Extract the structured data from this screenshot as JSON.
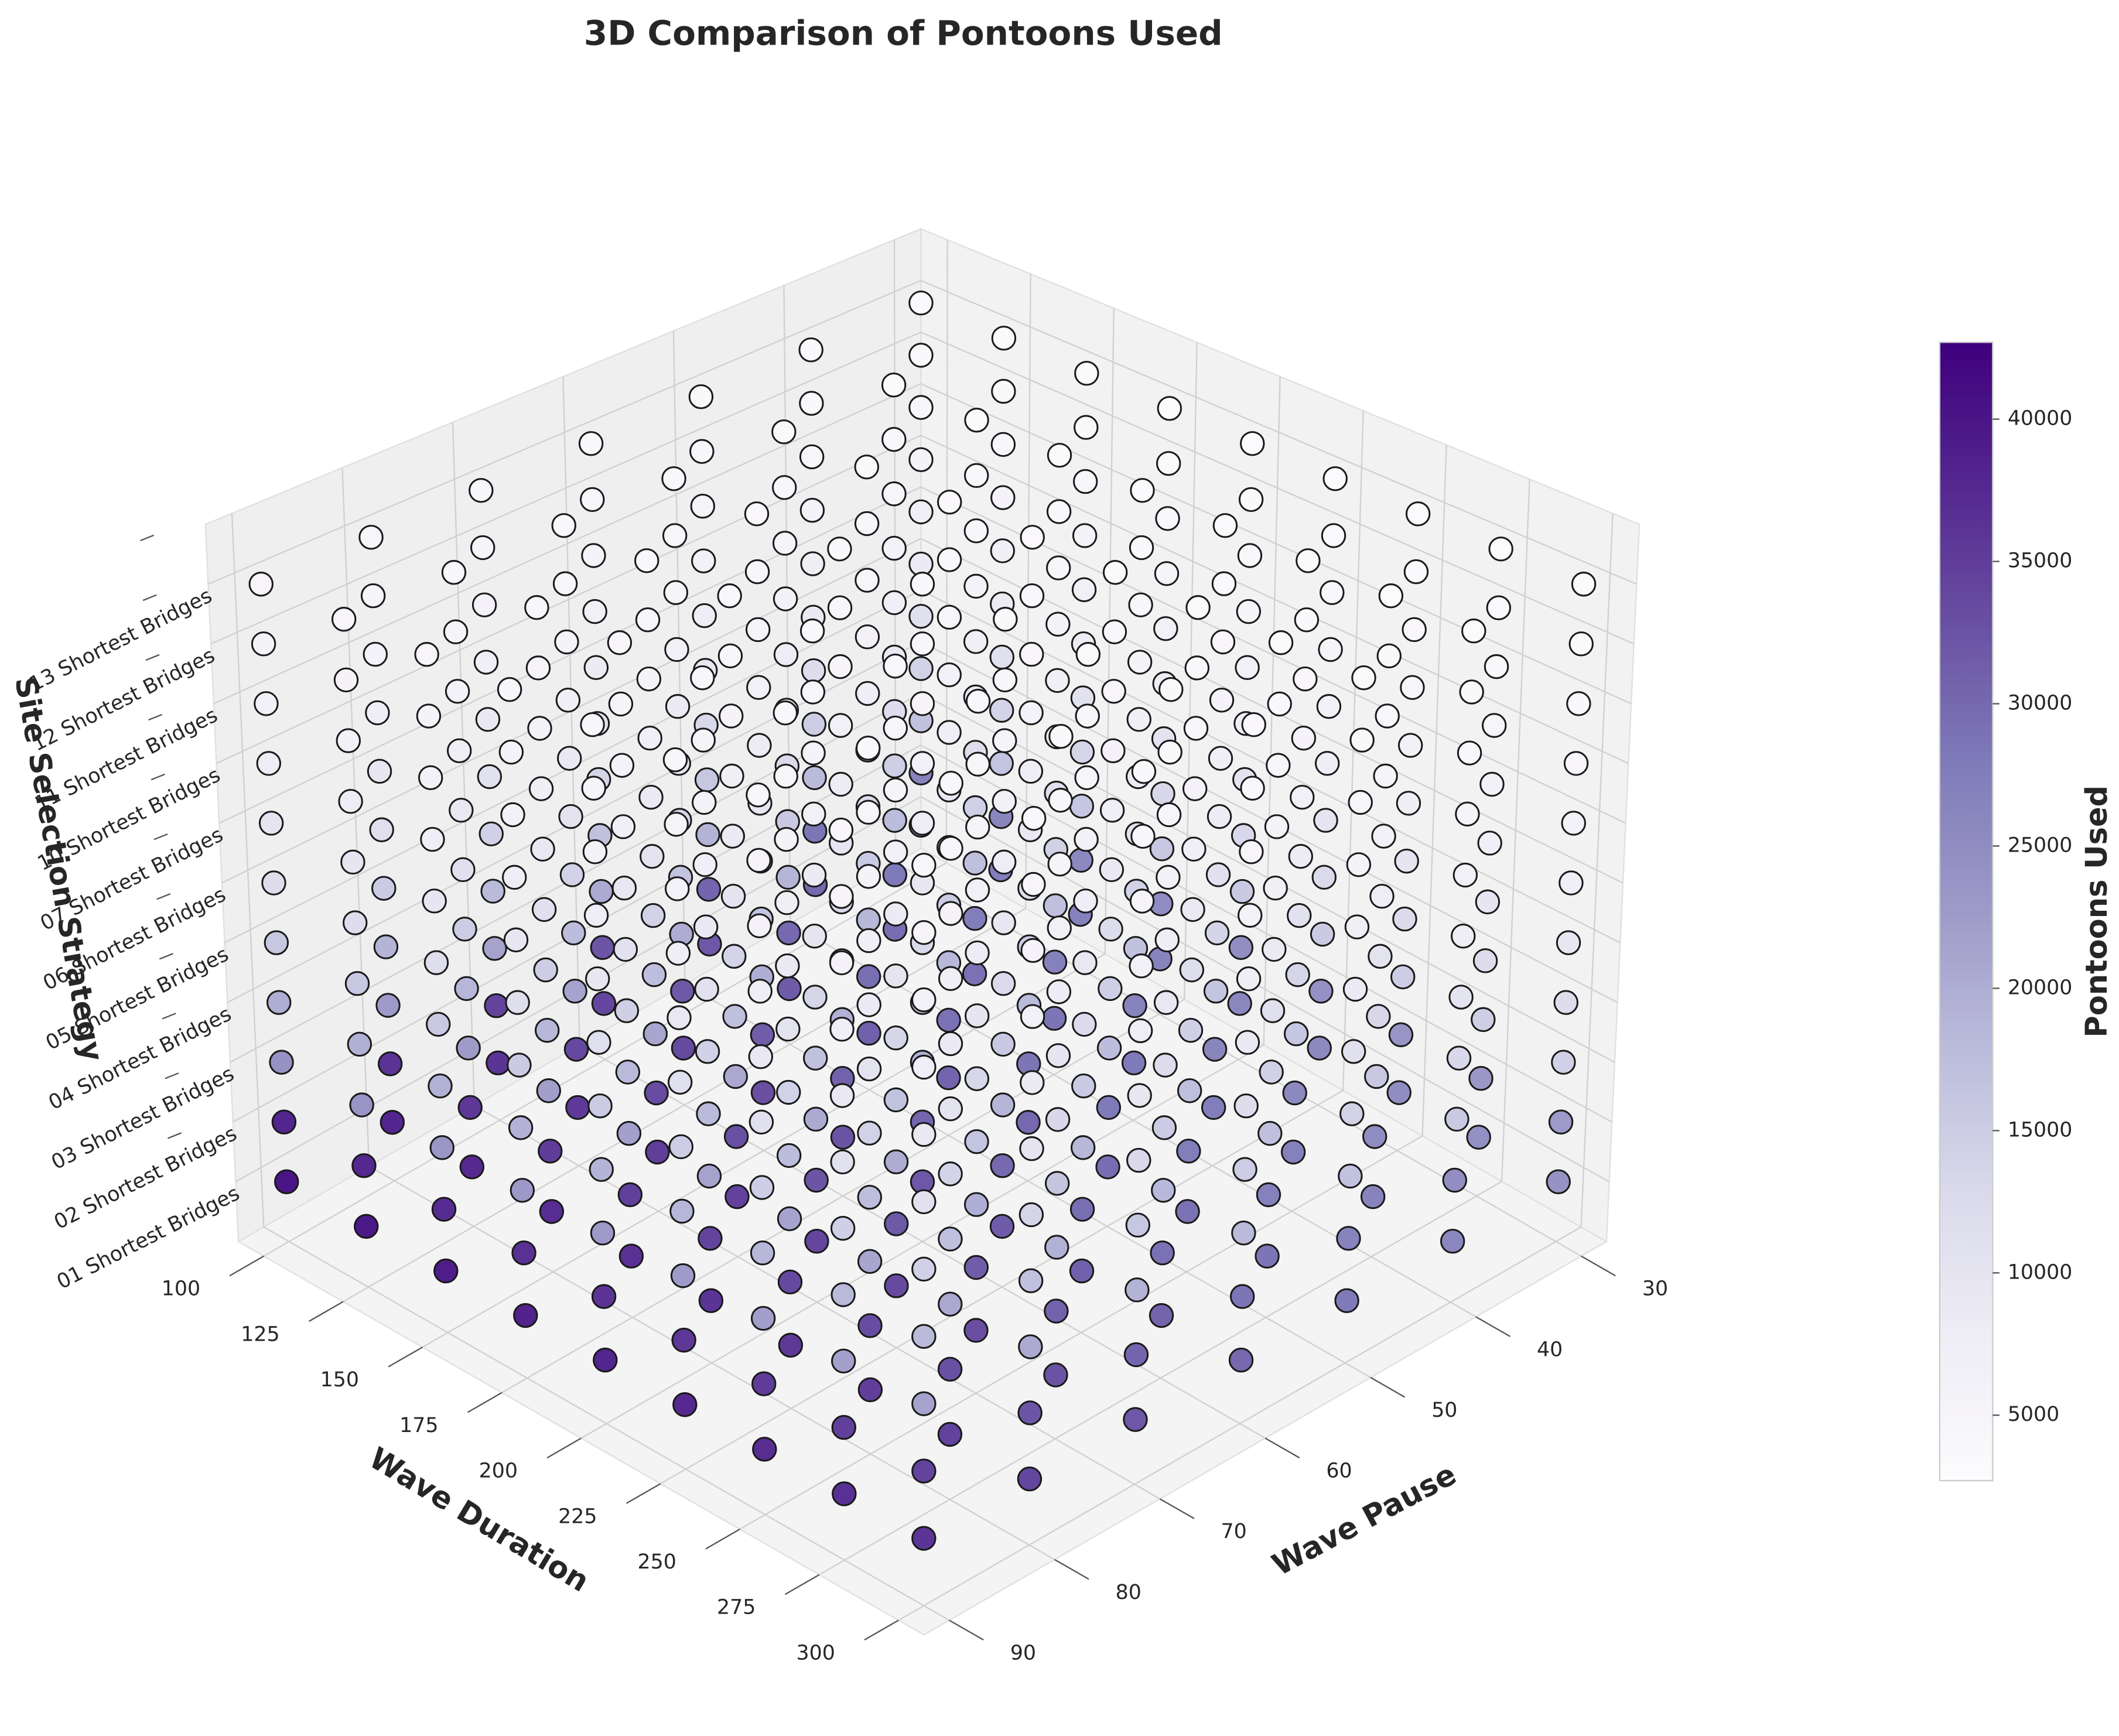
{
  "chart_data": {
    "type": "scatter3d",
    "title": "3D Comparison of Pontoons Used",
    "xlabel": "Wave Duration",
    "ylabel": "Wave Pause",
    "zlabel": "Site Selection Strategy",
    "colorbar_label": "Pontoons Used",
    "x": [
      100,
      125,
      150,
      175,
      200,
      225,
      250,
      275,
      300
    ],
    "y": [
      30,
      40,
      50,
      60,
      70,
      80,
      90
    ],
    "z_categories": [
      "01 Shortest Bridges",
      "02 Shortest Bridges",
      "03 Shortest Bridges",
      "04 Shortest Bridges",
      "05 Shortest Bridges",
      "06 Shortest Bridges",
      "07 Shortest Bridges",
      "10 Shortest Bridges",
      "11 Shortest Bridges",
      "12 Shortest Bridges",
      "13 Shortest Bridges"
    ],
    "xlim": [
      92,
      308
    ],
    "ylim": [
      27.6,
      92.4
    ],
    "xticks": [
      100,
      125,
      150,
      175,
      200,
      225,
      250,
      275,
      300
    ],
    "yticks": [
      30,
      40,
      50,
      60,
      70,
      80,
      90
    ],
    "clim": [
      2700,
      42700
    ],
    "cticks": [
      5000,
      10000,
      15000,
      20000,
      25000,
      30000,
      35000,
      40000
    ],
    "colormap": [
      "#fcfbfd",
      "#efedf5",
      "#dadaeb",
      "#bcbddc",
      "#9e9ac8",
      "#807dba",
      "#6a51a3",
      "#54278f",
      "#3f007d"
    ],
    "marker_edge_color": "#1a1a1a",
    "grid": true,
    "values": [
      [
        [
          28000,
          30000,
          32000,
          34000,
          36000,
          38000,
          40000
        ],
        [
          27500,
          29500,
          31500,
          33500,
          35500,
          37500,
          39500
        ],
        [
          27000,
          29000,
          31000,
          33000,
          35000,
          37000,
          39000
        ],
        [
          26500,
          28500,
          30500,
          32500,
          34500,
          36500,
          38500
        ],
        [
          26000,
          28000,
          30000,
          32000,
          34000,
          36000,
          38000
        ],
        [
          25500,
          27500,
          29500,
          31500,
          33500,
          35500,
          37500
        ],
        [
          25000,
          27000,
          29000,
          31000,
          33000,
          35000,
          37000
        ],
        [
          24500,
          26500,
          28500,
          30500,
          32500,
          34500,
          36500
        ],
        [
          24000,
          26000,
          28000,
          30000,
          32000,
          34000,
          36000
        ]
      ],
      [
        [
          26600,
          28500,
          30400,
          32300,
          34200,
          36100,
          38000
        ],
        [
          26125,
          28025,
          29925,
          31825,
          33725,
          35625,
          37525
        ],
        [
          25650,
          27550,
          29450,
          31350,
          33250,
          35150,
          37050
        ],
        [
          25175,
          27075,
          28975,
          30875,
          32775,
          34675,
          36575
        ],
        [
          24700,
          26600,
          28500,
          30400,
          32300,
          34200,
          36100
        ],
        [
          24225,
          26125,
          28025,
          29925,
          31825,
          33725,
          35625
        ],
        [
          23750,
          25650,
          27550,
          29450,
          31350,
          33250,
          35150
        ],
        [
          23275,
          25175,
          27075,
          28975,
          30875,
          32775,
          34675
        ],
        [
          22800,
          24700,
          26600,
          28500,
          30400,
          32300,
          34200
        ]
      ],
      [
        [
          16800,
          18000,
          19200,
          20400,
          21600,
          22800,
          24000
        ],
        [
          16500,
          17700,
          18900,
          20100,
          21300,
          22500,
          23700
        ],
        [
          16200,
          17400,
          18600,
          19800,
          21000,
          22200,
          23400
        ],
        [
          15900,
          17100,
          18300,
          19500,
          20700,
          21900,
          23100
        ],
        [
          15600,
          16800,
          18000,
          19200,
          20400,
          21600,
          22800
        ],
        [
          15300,
          16500,
          17700,
          18900,
          20100,
          21300,
          22500
        ],
        [
          15000,
          16200,
          17400,
          18600,
          19800,
          21000,
          22200
        ],
        [
          14700,
          15900,
          17100,
          18300,
          19500,
          20700,
          21900
        ],
        [
          14400,
          15600,
          16800,
          18000,
          19200,
          20400,
          21600
        ]
      ],
      [
        [
          14000,
          15000,
          16000,
          17000,
          18000,
          19000,
          20000
        ],
        [
          13750,
          14750,
          15750,
          16750,
          17750,
          18750,
          19750
        ],
        [
          13500,
          14500,
          15500,
          16500,
          17500,
          18500,
          19500
        ],
        [
          13250,
          14250,
          15250,
          16250,
          17250,
          18250,
          19250
        ],
        [
          13000,
          14000,
          15000,
          16000,
          17000,
          18000,
          19000
        ],
        [
          12750,
          13750,
          14750,
          15750,
          16750,
          17750,
          18750
        ],
        [
          12500,
          13500,
          14500,
          15500,
          16500,
          17500,
          18500
        ],
        [
          12250,
          13250,
          14250,
          15250,
          16250,
          17250,
          18250
        ],
        [
          12000,
          13000,
          14000,
          15000,
          16000,
          17000,
          18000
        ]
      ],
      [
        [
          11200,
          12000,
          12800,
          13600,
          14400,
          15200,
          16000
        ],
        [
          11000,
          11800,
          12600,
          13400,
          14200,
          15000,
          15800
        ],
        [
          10800,
          11600,
          12400,
          13200,
          14000,
          14800,
          15600
        ],
        [
          10600,
          11400,
          12200,
          13000,
          13800,
          14600,
          15400
        ],
        [
          10400,
          11200,
          12000,
          12800,
          13600,
          14400,
          15200
        ],
        [
          10200,
          11000,
          11800,
          12600,
          13400,
          14200,
          15000
        ],
        [
          10000,
          10800,
          11600,
          12400,
          13200,
          14000,
          14800
        ],
        [
          9800,
          10600,
          11400,
          12200,
          13000,
          13800,
          14600
        ],
        [
          9600,
          10400,
          11200,
          12000,
          12800,
          13600,
          14400
        ]
      ],
      [
        [
          8400,
          9000,
          9600,
          10200,
          10800,
          11400,
          12000
        ],
        [
          8250,
          8850,
          9450,
          10050,
          10650,
          11250,
          11850
        ],
        [
          8100,
          8700,
          9300,
          9900,
          10500,
          11100,
          11700
        ],
        [
          7950,
          8550,
          9150,
          9750,
          10350,
          10950,
          11550
        ],
        [
          7800,
          8400,
          9000,
          9600,
          10200,
          10800,
          11400
        ],
        [
          7650,
          8250,
          8850,
          9450,
          10050,
          10650,
          11250
        ],
        [
          7500,
          8100,
          8700,
          9300,
          9900,
          10500,
          11100
        ],
        [
          7350,
          7950,
          8550,
          9150,
          9750,
          10350,
          10950
        ],
        [
          7200,
          7800,
          8400,
          9000,
          9600,
          10200,
          10800
        ]
      ],
      [
        [
          7000,
          7500,
          8000,
          8500,
          9000,
          9500,
          10000
        ],
        [
          6875,
          7375,
          7875,
          8375,
          8875,
          9375,
          9875
        ],
        [
          6750,
          7250,
          7750,
          8250,
          8750,
          9250,
          9750
        ],
        [
          6625,
          7125,
          7625,
          8125,
          8625,
          9125,
          9625
        ],
        [
          6500,
          7000,
          7500,
          8000,
          8500,
          9000,
          9500
        ],
        [
          6375,
          6875,
          7375,
          7875,
          8375,
          8875,
          9375
        ],
        [
          6250,
          6750,
          7250,
          7750,
          8250,
          8750,
          9250
        ],
        [
          6125,
          6625,
          7125,
          7625,
          8125,
          8625,
          9125
        ],
        [
          6000,
          6500,
          7000,
          7500,
          8000,
          8500,
          9000
        ]
      ],
      [
        [
          5600,
          6000,
          6400,
          6800,
          7200,
          7600,
          8000
        ],
        [
          5500,
          5900,
          6300,
          6700,
          7100,
          7500,
          7900
        ],
        [
          5400,
          5800,
          6200,
          6600,
          7000,
          7400,
          7800
        ],
        [
          5300,
          5700,
          6100,
          6500,
          6900,
          7300,
          7700
        ],
        [
          5200,
          5600,
          6000,
          6400,
          6800,
          7200,
          7600
        ],
        [
          5100,
          5500,
          5900,
          6300,
          6700,
          7100,
          7500
        ],
        [
          5000,
          5400,
          5800,
          6200,
          6600,
          7000,
          7400
        ],
        [
          4900,
          5300,
          5700,
          6100,
          6500,
          6900,
          7300
        ],
        [
          4800,
          5200,
          5600,
          6000,
          6400,
          6800,
          7200
        ]
      ],
      [
        [
          4480,
          4800,
          5120,
          5440,
          5760,
          6080,
          6400
        ],
        [
          4400,
          4720,
          5040,
          5360,
          5680,
          6000,
          6320
        ],
        [
          4320,
          4640,
          4960,
          5280,
          5600,
          5920,
          6240
        ],
        [
          4240,
          4560,
          4880,
          5200,
          5520,
          5840,
          6160
        ],
        [
          4160,
          4480,
          4800,
          5120,
          5440,
          5760,
          6080
        ],
        [
          4080,
          4400,
          4720,
          5040,
          5360,
          5680,
          6000
        ],
        [
          4000,
          4320,
          4640,
          4960,
          5280,
          5600,
          5920
        ],
        [
          3920,
          4240,
          4560,
          4880,
          5200,
          5520,
          5840
        ],
        [
          3840,
          4160,
          4480,
          4800,
          5120,
          5440,
          5760
        ]
      ],
      [
        [
          3920,
          4200,
          4480,
          4760,
          5040,
          5320,
          5600
        ],
        [
          3850,
          4130,
          4410,
          4690,
          4970,
          5250,
          5530
        ],
        [
          3780,
          4060,
          4340,
          4620,
          4900,
          5180,
          5460
        ],
        [
          3710,
          3990,
          4270,
          4550,
          4830,
          5110,
          5390
        ],
        [
          3640,
          3920,
          4200,
          4480,
          4760,
          5040,
          5320
        ],
        [
          3570,
          3850,
          4130,
          4410,
          4690,
          4970,
          5250
        ],
        [
          3500,
          3780,
          4060,
          4340,
          4620,
          4900,
          5180
        ],
        [
          3430,
          3710,
          3990,
          4270,
          4550,
          4830,
          5110
        ],
        [
          3360,
          3640,
          3920,
          4200,
          4480,
          4760,
          5040
        ]
      ],
      [
        [
          3360,
          3600,
          3840,
          4080,
          4320,
          4560,
          4800
        ],
        [
          3300,
          3540,
          3780,
          4020,
          4260,
          4500,
          4740
        ],
        [
          3240,
          3480,
          3720,
          3960,
          4200,
          4440,
          4680
        ],
        [
          3180,
          3420,
          3660,
          3900,
          4140,
          4380,
          4620
        ],
        [
          3120,
          3360,
          3600,
          3840,
          4080,
          4320,
          4560
        ],
        [
          3060,
          3300,
          3540,
          3780,
          4020,
          4260,
          4500
        ],
        [
          3000,
          3240,
          3480,
          3720,
          3960,
          4200,
          4440
        ],
        [
          2940,
          3180,
          3420,
          3660,
          3900,
          4140,
          4380
        ],
        [
          2880,
          3120,
          3360,
          3600,
          3840,
          4080,
          4320
        ]
      ]
    ]
  }
}
